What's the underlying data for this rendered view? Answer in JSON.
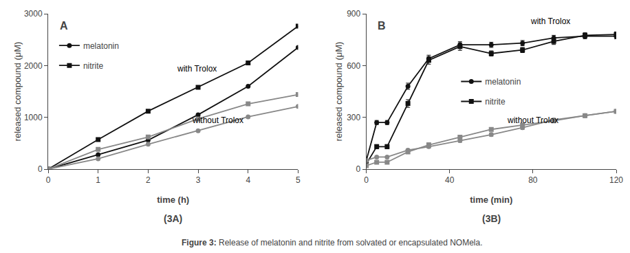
{
  "chart_data": [
    {
      "type": "line",
      "title": "A",
      "subtitle": "(3A)",
      "xlabel": "time (h)",
      "ylabel": "released compound (μM)",
      "xlim": [
        0,
        5
      ],
      "ylim": [
        0,
        3000
      ],
      "xticks": [
        0,
        1,
        2,
        3,
        4,
        5
      ],
      "yticks": [
        0,
        1000,
        2000,
        3000
      ],
      "grid": false,
      "legend": "upper left",
      "annotations": [
        {
          "text": "with Trolox",
          "x": 2.55,
          "y": 1820
        },
        {
          "text": "without Trolox",
          "x": 2.85,
          "y": 820
        }
      ],
      "series": [
        {
          "name": "melatonin",
          "color": "#111111",
          "marker": "circle",
          "line_style": "solid",
          "x": [
            0,
            1,
            2,
            3,
            4,
            5
          ],
          "values": [
            0,
            280,
            560,
            1050,
            1600,
            2350
          ]
        },
        {
          "name": "nitrite",
          "color": "#111111",
          "marker": "square",
          "line_style": "solid",
          "x": [
            0,
            1,
            2,
            3,
            4,
            5
          ],
          "values": [
            0,
            570,
            1120,
            1580,
            2050,
            2760
          ]
        },
        {
          "name": "melatonin",
          "color": "#888888",
          "marker": "circle",
          "line_style": "solid",
          "x": [
            0,
            1,
            2,
            3,
            4,
            5
          ],
          "values": [
            0,
            200,
            480,
            740,
            1010,
            1210
          ]
        },
        {
          "name": "nitrite",
          "color": "#888888",
          "marker": "square",
          "line_style": "solid",
          "x": [
            0,
            1,
            2,
            3,
            4,
            5
          ],
          "values": [
            0,
            380,
            620,
            970,
            1260,
            1440
          ]
        }
      ]
    },
    {
      "type": "line",
      "title": "B",
      "subtitle": "(3B)",
      "xlabel": "time (min)",
      "ylabel": "released compound (μM)",
      "xlim": [
        0,
        120
      ],
      "ylim": [
        0,
        900
      ],
      "xticks": [
        0,
        40,
        80,
        120
      ],
      "yticks": [
        0,
        300,
        600,
        900
      ],
      "grid": false,
      "legend": "center",
      "annotations": [
        {
          "text": "with Trolox",
          "x": 78,
          "y": 820
        },
        {
          "text": "without Trolox",
          "x": 67,
          "y": 248
        }
      ],
      "series": [
        {
          "name": "melatonin",
          "color": "#111111",
          "marker": "circle",
          "line_style": "solid",
          "x": [
            0,
            5,
            10,
            20,
            30,
            45,
            60,
            75,
            90,
            105,
            120
          ],
          "values": [
            50,
            270,
            270,
            480,
            640,
            720,
            720,
            730,
            760,
            770,
            770
          ],
          "errors": [
            8,
            12,
            12,
            18,
            20,
            18,
            15,
            15,
            15,
            15,
            15
          ]
        },
        {
          "name": "nitrite",
          "color": "#111111",
          "marker": "square",
          "line_style": "solid",
          "x": [
            0,
            5,
            10,
            20,
            30,
            45,
            60,
            75,
            90,
            105,
            120
          ],
          "values": [
            30,
            130,
            130,
            380,
            630,
            710,
            670,
            690,
            740,
            775,
            780
          ],
          "errors": [
            6,
            12,
            12,
            22,
            22,
            22,
            15,
            15,
            18,
            15,
            15
          ]
        },
        {
          "name": "melatonin",
          "color": "#888888",
          "marker": "circle",
          "line_style": "solid",
          "x": [
            0,
            5,
            10,
            20,
            30,
            45,
            60,
            75,
            90,
            105,
            120
          ],
          "values": [
            50,
            70,
            70,
            110,
            130,
            165,
            200,
            240,
            285,
            310,
            335
          ],
          "errors": [
            5,
            5,
            5,
            8,
            8,
            10,
            10,
            10,
            10,
            10,
            10
          ]
        },
        {
          "name": "nitrite",
          "color": "#888888",
          "marker": "square",
          "line_style": "solid",
          "x": [
            0,
            5,
            10,
            20,
            30,
            45,
            60,
            75,
            90,
            105,
            120
          ],
          "values": [
            20,
            40,
            40,
            100,
            140,
            185,
            230,
            255,
            280,
            310,
            335
          ],
          "errors": [
            4,
            5,
            5,
            8,
            12,
            12,
            10,
            10,
            10,
            10,
            10
          ]
        }
      ]
    }
  ],
  "caption": {
    "bold": "Figure 3:",
    "text": " Release of melatonin and nitrite from solvated or encapsulated NOMela."
  }
}
